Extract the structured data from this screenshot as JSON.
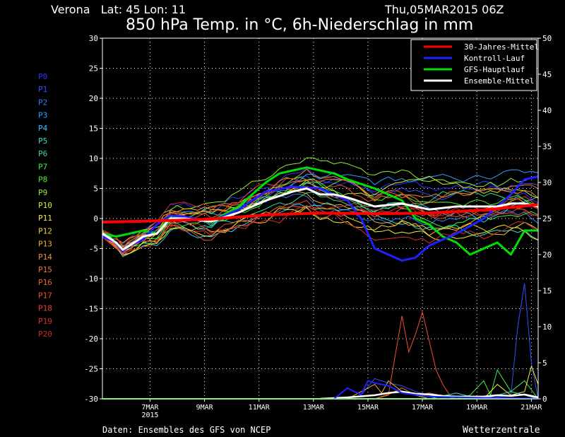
{
  "header": {
    "location": "Verona   Lat: 45 Lon: 11",
    "run": "Thu,05MAR2015 06Z",
    "title": "850 hPa Temp. in °C, 6h-Niederschlag in mm"
  },
  "footer": {
    "source": "Daten: Ensembles des GFS von NCEP",
    "brand": "Wetterzentrale"
  },
  "colors": {
    "background": "#000000",
    "clim": "#ff0000",
    "control": "#2020ff",
    "operational": "#00e000",
    "mean": "#ffffff"
  },
  "chart_data": {
    "type": "line",
    "x_range": [
      0,
      16
    ],
    "x_ticks": [
      {
        "x": 1.75,
        "label": "7MAR",
        "sub": "2015"
      },
      {
        "x": 3.75,
        "label": "9MAR"
      },
      {
        "x": 5.75,
        "label": "11MAR"
      },
      {
        "x": 7.75,
        "label": "13MAR"
      },
      {
        "x": 9.75,
        "label": "15MAR"
      },
      {
        "x": 11.75,
        "label": "17MAR"
      },
      {
        "x": 13.75,
        "label": "19MAR"
      },
      {
        "x": 15.75,
        "label": "21MAR"
      }
    ],
    "y_left": {
      "range": [
        -30,
        30
      ],
      "ticks": [
        "30",
        "25",
        "20",
        "15",
        "10",
        "5",
        "0",
        "-5",
        "-10",
        "-15",
        "-20",
        "-25",
        "-30"
      ]
    },
    "y_right": {
      "range": [
        0,
        50
      ],
      "ticks": [
        "50",
        "45",
        "40",
        "35",
        "30",
        "25",
        "20",
        "15",
        "10",
        "5",
        "0"
      ]
    },
    "grid": true,
    "legend_position": "top-right",
    "legend": [
      {
        "label": "30-Jahres-Mittel",
        "color": "#ff0000"
      },
      {
        "label": "Kontroll-Lauf",
        "color": "#2020ff"
      },
      {
        "label": "GFS-Hauptlauf",
        "color": "#00e000"
      },
      {
        "label": "Ensemble-Mittel",
        "color": "#ffffff"
      }
    ],
    "members": [
      {
        "label": "P0",
        "color": "#3030ff"
      },
      {
        "label": "P1",
        "color": "#3050ff"
      },
      {
        "label": "P2",
        "color": "#2f7fff"
      },
      {
        "label": "P3",
        "color": "#2fa0ff"
      },
      {
        "label": "P4",
        "color": "#30c8ff"
      },
      {
        "label": "P5",
        "color": "#30e0d0"
      },
      {
        "label": "P6",
        "color": "#30e090"
      },
      {
        "label": "P7",
        "color": "#40f050"
      },
      {
        "label": "P8",
        "color": "#50f030"
      },
      {
        "label": "P9",
        "color": "#90f030"
      },
      {
        "label": "P10",
        "color": "#c8f030"
      },
      {
        "label": "P11",
        "color": "#f0f030"
      },
      {
        "label": "P12",
        "color": "#f0d030"
      },
      {
        "label": "P13",
        "color": "#f0b030"
      },
      {
        "label": "P14",
        "color": "#f09030"
      },
      {
        "label": "P15",
        "color": "#f07830"
      },
      {
        "label": "P16",
        "color": "#f06030"
      },
      {
        "label": "P17",
        "color": "#f05030"
      },
      {
        "label": "P18",
        "color": "#e84030"
      },
      {
        "label": "P19",
        "color": "#d83030"
      },
      {
        "label": "P20",
        "color": "#c82828"
      }
    ],
    "series": [
      {
        "role": "clim",
        "x": [
          0,
          2,
          4,
          6,
          8,
          10,
          12,
          14,
          16
        ],
        "values": [
          -0.6,
          -0.4,
          -0.1,
          0.6,
          0.9,
          0.8,
          0.9,
          1.4,
          2.3
        ]
      },
      {
        "role": "control",
        "x": [
          0,
          0.5,
          0.75,
          1,
          1.5,
          2,
          2.5,
          3,
          4,
          5,
          6,
          7,
          8,
          9,
          9.5,
          10,
          11,
          11.5,
          12,
          13,
          14,
          15,
          15.5,
          16
        ],
        "values": [
          -3,
          -4,
          -5.5,
          -4.5,
          -3.5,
          -1,
          0.5,
          0.3,
          -0.5,
          1.5,
          4.5,
          5.3,
          5,
          3,
          0,
          -5,
          -7,
          -6.5,
          -4.5,
          -2.5,
          0,
          4,
          6.5,
          7
        ]
      },
      {
        "role": "operational",
        "x": [
          0,
          0.5,
          1,
          1.5,
          2,
          2.5,
          3,
          4,
          5,
          6,
          6.5,
          7,
          7.5,
          8,
          8.5,
          9,
          10,
          11,
          11.5,
          12,
          12.5,
          13,
          13.5,
          14,
          14.5,
          15,
          15.5,
          16
        ],
        "values": [
          -2.5,
          -3,
          -2.5,
          -2,
          -2.5,
          0.5,
          0,
          -0.5,
          2,
          6,
          7.5,
          8,
          8.5,
          8,
          7.5,
          6.5,
          5,
          3,
          0,
          -1,
          -3,
          -4,
          -6,
          -5,
          -4,
          -6,
          -2,
          -2
        ]
      },
      {
        "role": "mean",
        "x": [
          0,
          0.5,
          0.75,
          1,
          1.5,
          2,
          2.5,
          3,
          4,
          5,
          6,
          7,
          7.5,
          8,
          8.5,
          9,
          10,
          11,
          12,
          13,
          14,
          14.5,
          15,
          15.5,
          16
        ],
        "values": [
          -2.5,
          -4,
          -5.2,
          -4.5,
          -3,
          -2.5,
          0,
          0,
          -0.5,
          1,
          3,
          4.5,
          5,
          4,
          4,
          3.5,
          2,
          2.5,
          1.5,
          2,
          2,
          2,
          2.5,
          2.5,
          2
        ]
      }
    ],
    "precipitation": [
      {
        "member": 1,
        "x": [
          8.5,
          9,
          9.25,
          9.5,
          10,
          10.5,
          11,
          11.5,
          12,
          12.5,
          13,
          13.5,
          14,
          15,
          15.25,
          15.5,
          15.75,
          16
        ],
        "values": [
          0,
          1.5,
          1,
          0.5,
          2.8,
          2.2,
          1.8,
          1,
          0.5,
          0.2,
          0.3,
          0,
          0,
          0.5,
          10,
          16,
          5,
          0
        ]
      },
      {
        "member": 17,
        "x": [
          10,
          10.5,
          11,
          11.25,
          11.5,
          11.75,
          12,
          12.25,
          12.5,
          12.75,
          13
        ],
        "values": [
          0,
          0.5,
          11.5,
          6.5,
          9,
          12,
          8,
          4,
          2,
          0.5,
          0
        ]
      },
      {
        "member": 13,
        "x": [
          9,
          9.5,
          10,
          10.25,
          10.5,
          11,
          11.5,
          12
        ],
        "values": [
          0,
          1,
          2,
          0.8,
          2.5,
          1,
          0.5,
          0
        ]
      },
      {
        "member": 7,
        "x": [
          13,
          13.5,
          14,
          14.25,
          14.5,
          15,
          15.5,
          16
        ],
        "values": [
          0,
          0.5,
          2.5,
          0.5,
          4,
          1,
          2.5,
          0
        ]
      },
      {
        "member": 11,
        "x": [
          14,
          14.5,
          15,
          15.5,
          15.75,
          16
        ],
        "values": [
          0,
          2,
          0.5,
          1,
          4.5,
          2
        ]
      },
      {
        "member": 5,
        "x": [
          12,
          13,
          13.5,
          14,
          15,
          16
        ],
        "values": [
          0,
          0.8,
          0.3,
          0,
          1,
          0
        ]
      },
      {
        "member": 15,
        "x": [
          10,
          10.5,
          11,
          11.5,
          12,
          13
        ],
        "values": [
          0,
          0.6,
          1.5,
          0.5,
          0.8,
          0
        ]
      },
      {
        "role": "mean",
        "x": [
          8,
          9,
          10,
          10.5,
          11,
          11.5,
          12,
          12.5,
          13,
          14,
          14.5,
          15,
          15.5,
          16
        ],
        "values": [
          0,
          0.2,
          0.5,
          0.8,
          1,
          0.7,
          0.6,
          0.4,
          0.3,
          0.3,
          0.5,
          0.4,
          0.6,
          0.2
        ]
      },
      {
        "role": "operational",
        "x": [
          0,
          16
        ],
        "values": [
          0,
          0
        ]
      }
    ]
  }
}
